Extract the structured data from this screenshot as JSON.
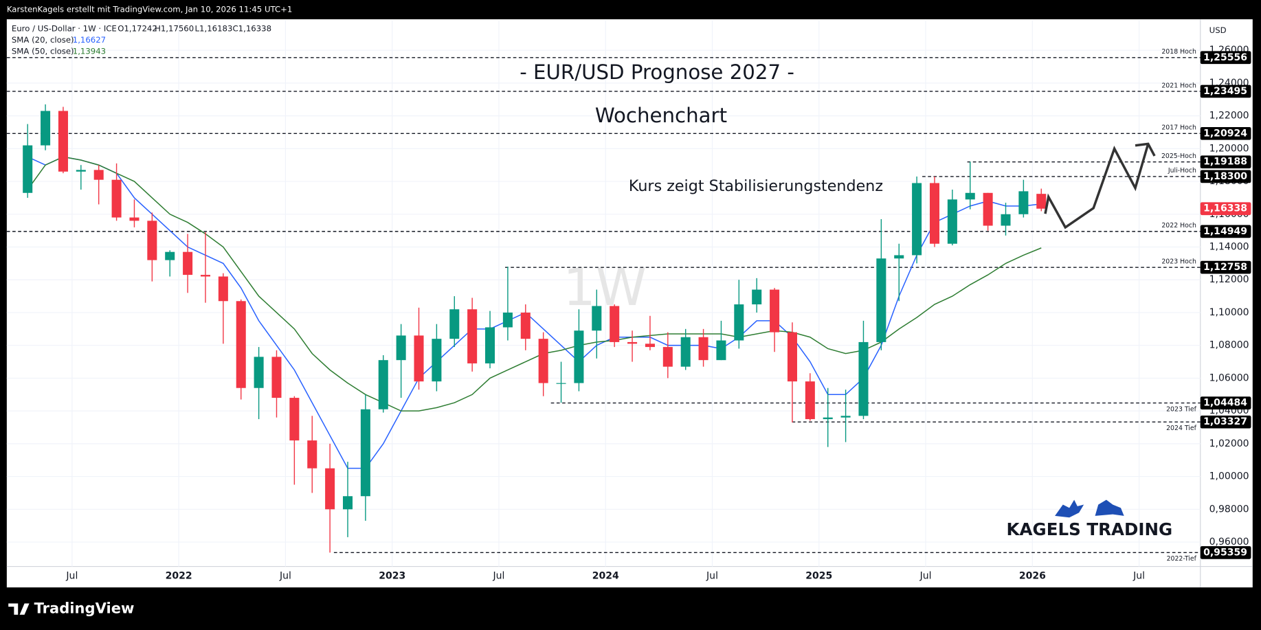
{
  "header": "KarstenKagels erstellt mit TradingView.com, Jan 10, 2026 11:45 UTC+1",
  "footer_logo": "TradingView",
  "chart_data": {
    "type": "candlestick",
    "title": "- EUR/USD Prognose 2027 -",
    "subtitle": "Wochenchart",
    "annotation": "Kurs zeigt Stabilisierungstendenz",
    "watermark": "1W",
    "logo": "KAGELS TRADING",
    "symbol": "Euro / US-Dollar · 1W · ICE",
    "ohlc_legend": [
      "O1,17242",
      "H1,17560",
      "L1,16183",
      "C1,16338"
    ],
    "currency": "USD",
    "categories": [
      null,
      null,
      null,
      "Jul",
      null,
      null,
      null,
      null,
      null,
      "2022",
      null,
      null,
      null,
      null,
      null,
      "Jul",
      null,
      null,
      null,
      null,
      null,
      "2023",
      null,
      null,
      null,
      null,
      null,
      "Jul",
      null,
      null,
      null,
      null,
      null,
      "2024",
      null,
      null,
      null,
      null,
      null,
      "Jul",
      null,
      null,
      null,
      null,
      null,
      "2025",
      null,
      null,
      null,
      null,
      null,
      "Jul",
      null,
      null,
      null,
      null,
      null,
      "2026",
      null,
      null,
      null,
      null,
      null,
      "Jul",
      null,
      null
    ],
    "ohlc": [
      [
        1.173,
        1.215,
        1.17,
        1.202
      ],
      [
        1.202,
        1.227,
        1.199,
        1.223
      ],
      [
        1.223,
        1.2255,
        1.185,
        1.186
      ],
      [
        1.186,
        1.19,
        1.175,
        1.187
      ],
      [
        1.187,
        1.19,
        1.166,
        1.181
      ],
      [
        1.181,
        1.191,
        1.156,
        1.158
      ],
      [
        1.158,
        1.169,
        1.152,
        1.156
      ],
      [
        1.156,
        1.161,
        1.119,
        1.132
      ],
      [
        1.132,
        1.138,
        1.122,
        1.137
      ],
      [
        1.137,
        1.148,
        1.112,
        1.123
      ],
      [
        1.123,
        1.149,
        1.106,
        1.122
      ],
      [
        1.122,
        1.124,
        1.081,
        1.107
      ],
      [
        1.107,
        1.108,
        1.047,
        1.054
      ],
      [
        1.054,
        1.079,
        1.035,
        1.073
      ],
      [
        1.073,
        1.077,
        1.036,
        1.048
      ],
      [
        1.048,
        1.049,
        0.995,
        1.022
      ],
      [
        1.022,
        1.037,
        0.99,
        1.005
      ],
      [
        1.005,
        1.02,
        0.9536,
        0.98
      ],
      [
        0.98,
        1.009,
        0.963,
        0.988
      ],
      [
        0.988,
        1.05,
        0.973,
        1.041
      ],
      [
        1.041,
        1.074,
        1.039,
        1.071
      ],
      [
        1.071,
        1.093,
        1.048,
        1.086
      ],
      [
        1.086,
        1.103,
        1.053,
        1.058
      ],
      [
        1.058,
        1.093,
        1.052,
        1.084
      ],
      [
        1.084,
        1.11,
        1.079,
        1.102
      ],
      [
        1.102,
        1.109,
        1.064,
        1.069
      ],
      [
        1.069,
        1.101,
        1.066,
        1.091
      ],
      [
        1.091,
        1.128,
        1.083,
        1.1
      ],
      [
        1.1,
        1.105,
        1.077,
        1.084
      ],
      [
        1.084,
        1.088,
        1.049,
        1.057
      ],
      [
        1.057,
        1.07,
        1.045,
        1.057
      ],
      [
        1.057,
        1.102,
        1.052,
        1.089
      ],
      [
        1.089,
        1.114,
        1.072,
        1.104
      ],
      [
        1.104,
        1.105,
        1.079,
        1.082
      ],
      [
        1.082,
        1.089,
        1.07,
        1.081
      ],
      [
        1.081,
        1.098,
        1.077,
        1.079
      ],
      [
        1.079,
        1.088,
        1.06,
        1.067
      ],
      [
        1.067,
        1.09,
        1.065,
        1.085
      ],
      [
        1.085,
        1.09,
        1.067,
        1.071
      ],
      [
        1.071,
        1.095,
        1.071,
        1.083
      ],
      [
        1.083,
        1.12,
        1.078,
        1.105
      ],
      [
        1.105,
        1.121,
        1.1,
        1.114
      ],
      [
        1.114,
        1.115,
        1.076,
        1.088
      ],
      [
        1.088,
        1.094,
        1.033,
        1.058
      ],
      [
        1.058,
        1.063,
        1.034,
        1.035
      ],
      [
        1.035,
        1.054,
        1.018,
        1.036
      ],
      [
        1.036,
        1.053,
        1.021,
        1.037
      ],
      [
        1.037,
        1.095,
        1.035,
        1.082
      ],
      [
        1.082,
        1.157,
        1.077,
        1.133
      ],
      [
        1.133,
        1.142,
        1.107,
        1.135
      ],
      [
        1.135,
        1.183,
        1.13,
        1.179
      ],
      [
        1.179,
        1.183,
        1.14,
        1.142
      ],
      [
        1.142,
        1.175,
        1.141,
        1.169
      ],
      [
        1.169,
        1.192,
        1.163,
        1.173
      ],
      [
        1.173,
        1.173,
        1.15,
        1.153
      ],
      [
        1.153,
        1.167,
        1.147,
        1.16
      ],
      [
        1.16,
        1.181,
        1.158,
        1.174
      ],
      [
        1.17242,
        1.1756,
        1.16183,
        1.16338
      ],
      null,
      null,
      null,
      null,
      null,
      null,
      null,
      null
    ],
    "up_color": "#089981",
    "down_color": "#f23645",
    "series": [
      {
        "name": "SMA (20, close)",
        "color": "#2962ff",
        "last_label": "1,16627",
        "values": [
          1.195,
          1.19,
          1.195,
          1.193,
          1.19,
          1.185,
          1.17,
          1.16,
          1.15,
          1.14,
          1.135,
          1.13,
          1.115,
          1.095,
          1.08,
          1.065,
          1.045,
          1.025,
          1.005,
          1.005,
          1.02,
          1.04,
          1.06,
          1.07,
          1.08,
          1.09,
          1.09,
          1.095,
          1.1,
          1.09,
          1.08,
          1.07,
          1.08,
          1.085,
          1.085,
          1.085,
          1.08,
          1.08,
          1.08,
          1.078,
          1.085,
          1.095,
          1.095,
          1.085,
          1.07,
          1.05,
          1.05,
          1.06,
          1.08,
          1.11,
          1.135,
          1.155,
          1.16,
          1.165,
          1.168,
          1.165,
          1.165,
          1.16627,
          null,
          null,
          null,
          null,
          null,
          null,
          null,
          null
        ]
      },
      {
        "name": "SMA (50, close)",
        "color": "#2e7d32",
        "last_label": "1,13943",
        "values": [
          1.175,
          1.19,
          1.195,
          1.193,
          1.19,
          1.185,
          1.18,
          1.17,
          1.16,
          1.155,
          1.148,
          1.14,
          1.125,
          1.11,
          1.1,
          1.09,
          1.075,
          1.065,
          1.057,
          1.05,
          1.045,
          1.04,
          1.04,
          1.042,
          1.045,
          1.05,
          1.06,
          1.065,
          1.07,
          1.075,
          1.077,
          1.08,
          1.082,
          1.083,
          1.085,
          1.086,
          1.087,
          1.087,
          1.087,
          1.087,
          1.085,
          1.087,
          1.089,
          1.088,
          1.085,
          1.078,
          1.075,
          1.077,
          1.082,
          1.09,
          1.097,
          1.105,
          1.11,
          1.117,
          1.123,
          1.13,
          1.135,
          1.13943,
          null,
          null,
          null,
          null,
          null,
          null,
          null,
          null
        ]
      }
    ],
    "levels": [
      {
        "value": 1.25556,
        "label": "2018 Hoch",
        "price_label": "1,25556"
      },
      {
        "value": 1.23495,
        "label": "2021 Hoch",
        "price_label": "1,23495"
      },
      {
        "value": 1.20924,
        "label": "2017 Hoch",
        "price_label": "1,20924"
      },
      {
        "value": 1.19188,
        "label": "2025-Hoch",
        "price_label": "1,19188"
      },
      {
        "value": 1.183,
        "label": "Juli-Hoch",
        "price_label": "1,18300"
      },
      {
        "value": 1.14949,
        "label": "2022 Hoch",
        "price_label": "1,14949"
      },
      {
        "value": 1.12758,
        "label": "2023 Hoch",
        "price_label": "1,12758"
      },
      {
        "value": 1.04484,
        "label": "2023 Tief",
        "price_label": "1,04484"
      },
      {
        "value": 1.03327,
        "label": "2024 Tief",
        "price_label": "1,03327"
      },
      {
        "value": 0.95359,
        "label": "2022-Tief",
        "price_label": "0,95359"
      }
    ],
    "last_price": {
      "value": 1.16338,
      "label": "1,16338",
      "color": "#f23645"
    },
    "ylim": [
      0.9451,
      1.2789
    ],
    "yticks": [
      {
        "value": 0.96,
        "label": "0,96000"
      },
      {
        "value": 0.98,
        "label": "0,98000"
      },
      {
        "value": 1.0,
        "label": "1,00000"
      },
      {
        "value": 1.02,
        "label": "1,02000"
      },
      {
        "value": 1.04,
        "label": "1,04000"
      },
      {
        "value": 1.06,
        "label": "1,06000"
      },
      {
        "value": 1.08,
        "label": "1,08000"
      },
      {
        "value": 1.1,
        "label": "1,10000"
      },
      {
        "value": 1.12,
        "label": "1,12000"
      },
      {
        "value": 1.14,
        "label": "1,14000"
      },
      {
        "value": 1.16,
        "label": "1,16000"
      },
      {
        "value": 1.18,
        "label": "1,18000"
      },
      {
        "value": 1.2,
        "label": "1,20000"
      },
      {
        "value": 1.22,
        "label": "1,22000"
      },
      {
        "value": 1.24,
        "label": "1,24000"
      },
      {
        "value": 1.26,
        "label": "1,26000"
      }
    ],
    "grid": true
  }
}
